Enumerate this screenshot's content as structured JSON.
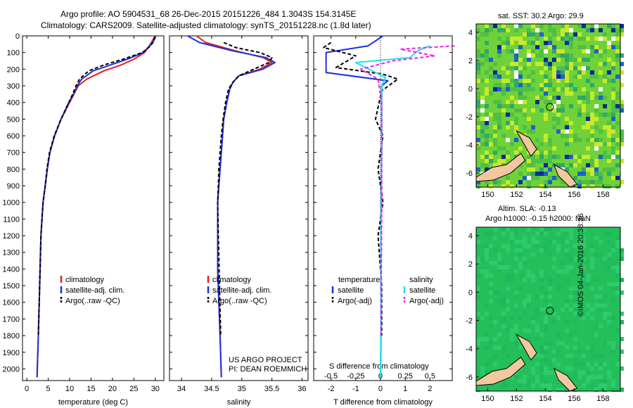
{
  "header": {
    "line1": "Argo profile: AO 5904531_68 26-Dec-2015 20151226_484 1.3043S 154.3145E",
    "line2": "Climatology: CARS2009. Satellite-adjusted climatology: synTS_20151228.nc (1.8d later)"
  },
  "map_sst": {
    "title": "sat. SST: 30.2 Argo: 29.9",
    "xlim": [
      149.2,
      159.2
    ],
    "ylim": [
      -7,
      4.6
    ],
    "xticks": [
      "150",
      "152",
      "154",
      "156",
      "158"
    ],
    "yticks": [
      "4",
      "2",
      "0",
      "-2",
      "-4",
      "-6"
    ],
    "float": [
      154.3145,
      -1.3043
    ]
  },
  "map_sla": {
    "title1": "Altim. SLA: -0.13",
    "title2": "Argo h1000: -0.15 h2000: NaN",
    "xlim": [
      149.2,
      159.2
    ],
    "ylim": [
      -7,
      4.6
    ],
    "xticks": [
      "150",
      "152",
      "154",
      "156",
      "158"
    ],
    "yticks": [
      "4",
      "2",
      "0",
      "-2",
      "-4",
      "-6"
    ],
    "float": [
      154.3145,
      -1.3043
    ]
  },
  "credit": "©IMOS 04-Jan-2016 20:38:36",
  "project": {
    "line1": "US ARGO PROJECT",
    "line2": "PI: DEAN ROEMMICH"
  },
  "colors": {
    "climatology": "#e0201a",
    "satellite": "#1a2ee0",
    "argo": "#000000",
    "sal_satellite": "#22e0f0",
    "sal_argo": "#f020f0"
  },
  "chart_data": [
    {
      "type": "line",
      "id": "temperature",
      "xlabel": "temperature (deg C)",
      "ylabel": "",
      "xlim": [
        -1,
        32
      ],
      "ylim": [
        2070,
        0
      ],
      "xticks": [
        "0",
        "5",
        "10",
        "15",
        "20",
        "25",
        "30"
      ],
      "yticks": [
        "0",
        "100",
        "200",
        "300",
        "400",
        "500",
        "600",
        "700",
        "800",
        "900",
        "1000",
        "1100",
        "1200",
        "1300",
        "1400",
        "1500",
        "1600",
        "1700",
        "1800",
        "1900",
        "2000"
      ],
      "legend": [
        "climatology",
        "satellite-adj. clim.",
        "Argo(..raw -QC)"
      ],
      "series": [
        {
          "name": "climatology",
          "x": [
            29.9,
            29.3,
            28.6,
            27.5,
            25,
            22,
            18,
            14,
            12,
            11,
            10,
            8,
            6.5,
            5.4,
            4.8,
            4.3,
            3.8,
            3.3,
            3.0,
            2.7,
            2.4
          ],
          "depth": [
            0,
            30,
            60,
            100,
            140,
            175,
            210,
            260,
            300,
            350,
            400,
            500,
            600,
            700,
            800,
            900,
            1000,
            1200,
            1500,
            1800,
            2050
          ]
        },
        {
          "name": "satellite-adj. clim.",
          "x": [
            30.1,
            29.6,
            28.7,
            27.2,
            23.5,
            19.5,
            15.5,
            12.8,
            11.8,
            10.9,
            9.8,
            8,
            6.5,
            5.4,
            4.8,
            4.3,
            3.8,
            3.3,
            3.0,
            2.7,
            2.4
          ],
          "depth": [
            0,
            30,
            60,
            100,
            140,
            175,
            210,
            260,
            300,
            350,
            400,
            500,
            600,
            700,
            800,
            900,
            1000,
            1200,
            1500,
            1800,
            2050
          ]
        },
        {
          "name": "Argo(..raw -QC)",
          "x": [
            29.9,
            29.7,
            28.9,
            27,
            22.5,
            18,
            14.5,
            12.3,
            11.5,
            10.7,
            9.8,
            8,
            6.4,
            5.3,
            4.7,
            4.3,
            3.8,
            3.3,
            3.0,
            2.7
          ],
          "depth": [
            5,
            30,
            60,
            100,
            140,
            175,
            210,
            260,
            300,
            350,
            400,
            500,
            600,
            700,
            800,
            900,
            1000,
            1200,
            1500,
            1800
          ]
        }
      ]
    },
    {
      "type": "line",
      "id": "salinity",
      "xlabel": "salinity",
      "xlim": [
        33.8,
        36.1
      ],
      "ylim": [
        2070,
        0
      ],
      "xticks": [
        "34",
        "34.5",
        "35",
        "35.5",
        "36"
      ],
      "legend": [
        "climatology",
        "satellite-adj. clim.",
        "Argo(..raw -QC)"
      ],
      "series": [
        {
          "name": "climatology",
          "x": [
            34.25,
            34.4,
            34.9,
            35.35,
            35.5,
            35.3,
            34.95,
            34.85,
            34.8,
            34.75,
            34.7,
            34.68,
            34.66,
            34.64,
            34.62,
            34.6,
            34.6,
            34.6,
            34.62,
            34.64,
            34.66
          ],
          "depth": [
            0,
            40,
            90,
            130,
            160,
            200,
            240,
            280,
            320,
            400,
            500,
            600,
            700,
            800,
            900,
            1000,
            1200,
            1400,
            1600,
            1800,
            2050
          ]
        },
        {
          "name": "satellite-adj. clim.",
          "x": [
            34.1,
            34.3,
            34.85,
            35.4,
            35.55,
            35.35,
            34.95,
            34.85,
            34.8,
            34.75,
            34.7,
            34.68,
            34.66,
            34.64,
            34.62,
            34.6,
            34.6,
            34.6,
            34.62,
            34.64,
            34.66
          ],
          "depth": [
            0,
            40,
            90,
            130,
            160,
            200,
            240,
            280,
            320,
            400,
            500,
            600,
            700,
            800,
            900,
            1000,
            1200,
            1400,
            1600,
            1800,
            2050
          ]
        },
        {
          "name": "Argo(..raw -QC)",
          "x": [
            34.7,
            34.9,
            35.3,
            35.5,
            35.45,
            35.2,
            34.95,
            34.85,
            34.78,
            34.73,
            34.69,
            34.66,
            34.64,
            34.62,
            34.61,
            34.6,
            34.61,
            34.63,
            34.65
          ],
          "depth": [
            40,
            70,
            100,
            130,
            160,
            200,
            240,
            280,
            320,
            400,
            500,
            600,
            700,
            800,
            900,
            1000,
            1200,
            1500,
            1800
          ]
        }
      ]
    },
    {
      "type": "line",
      "id": "difference",
      "xlabel": "T difference from climatology",
      "xlabel_top": "S difference from climatology",
      "xlim": [
        -2.7,
        2.9
      ],
      "ylim": [
        2070,
        0
      ],
      "xticks": [
        "-2",
        "-1",
        "0",
        "1",
        "2"
      ],
      "sticks": [
        "-0.5",
        "-0.25",
        "0",
        "0.25",
        "0.5"
      ],
      "legend_temp_title": "temperature",
      "legend_sal_title": "salinity",
      "legend_temp": [
        "satellite",
        "Argo(-adj)"
      ],
      "legend_sal": [
        "satellite",
        "Argo(-adj)"
      ],
      "series": [
        {
          "name": "temperature satellite",
          "x": [
            0.1,
            -0.5,
            -2.2,
            -2.2,
            0.3,
            0.05,
            0.05,
            0.05,
            0.05,
            0.03,
            0.02,
            0.02,
            0.02,
            0.02,
            0.0
          ],
          "depth": [
            0,
            60,
            100,
            220,
            270,
            300,
            400,
            500,
            700,
            900,
            1100,
            1300,
            1500,
            1800,
            2050
          ]
        },
        {
          "name": "temperature Argo(-adj)",
          "x": [
            -2,
            -2.3,
            -1,
            -1.8,
            0.1,
            0.7,
            0.05,
            -0.2,
            0.1,
            -0.1,
            0.1,
            -0.1,
            0.05,
            0.05
          ],
          "depth": [
            40,
            70,
            120,
            190,
            230,
            260,
            330,
            500,
            600,
            800,
            1000,
            1200,
            1500,
            1800
          ]
        },
        {
          "name": "salinity satellite",
          "x": [
            2,
            1.5,
            1.2,
            -1,
            0.2,
            0.05,
            0.05,
            0.04,
            0.04,
            0.03,
            0.02,
            0.02,
            0.0
          ],
          "depth": [
            60,
            90,
            130,
            160,
            250,
            300,
            500,
            700,
            900,
            1100,
            1300,
            1600,
            2050
          ]
        },
        {
          "name": "salinity Argo(-adj)",
          "x": [
            3,
            0.8,
            2.2,
            0.5,
            -0.8,
            -0.1,
            0.05,
            0.05,
            0.05,
            0.02
          ],
          "depth": [
            60,
            80,
            120,
            150,
            200,
            260,
            400,
            700,
            1000,
            1800
          ]
        }
      ]
    }
  ]
}
